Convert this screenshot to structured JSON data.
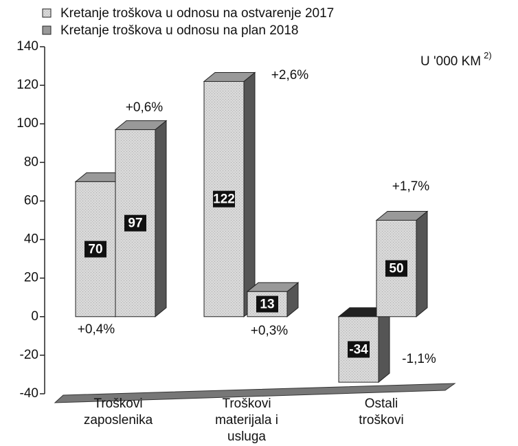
{
  "chart_data": {
    "type": "bar3d",
    "unit": "U '000 KM",
    "unit_note": "2)",
    "categories": [
      [
        "Troškovi",
        "zaposlenika"
      ],
      [
        "Troškovi",
        "materijala i",
        "usluga"
      ],
      [
        "Ostali",
        "troškovi"
      ]
    ],
    "series": [
      {
        "name": "Kretanje troškova u odnosu na ostvarenje 2017",
        "color": "#d6d6d6",
        "values": [
          70,
          122,
          -34
        ],
        "changes": [
          "+0,4%",
          "+2,6%",
          "-1,1%"
        ]
      },
      {
        "name": "Kretanje troškova u odnosu na plan 2018",
        "color": "#d6d6d6",
        "values": [
          97,
          13,
          50
        ],
        "changes": [
          "+0,6%",
          "+0,3%",
          "+1,7%"
        ]
      }
    ],
    "ylim": [
      -40,
      140
    ],
    "yticks": [
      -40,
      -20,
      0,
      20,
      40,
      60,
      80,
      100,
      120,
      140
    ]
  }
}
